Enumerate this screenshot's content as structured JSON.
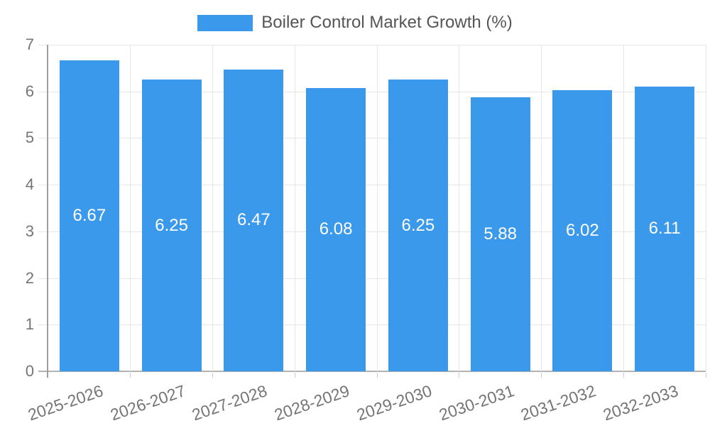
{
  "legend": {
    "label": "Boiler Control Market Growth (%)"
  },
  "chart_data": {
    "type": "bar",
    "title": "Boiler Control Market Growth (%)",
    "categories": [
      "2025-2026",
      "2026-2027",
      "2027-2028",
      "2028-2029",
      "2029-2030",
      "2030-2031",
      "2031-2032",
      "2032-2033"
    ],
    "values": [
      6.67,
      6.25,
      6.47,
      6.08,
      6.25,
      5.88,
      6.02,
      6.11
    ],
    "value_labels": [
      "6.67",
      "6.25",
      "6.47",
      "6.08",
      "6.25",
      "5.88",
      "6.02",
      "6.11"
    ],
    "xlabel": "",
    "ylabel": "",
    "ylim": [
      0,
      7
    ],
    "y_ticks": [
      0,
      1,
      2,
      3,
      4,
      5,
      6,
      7
    ],
    "grid": true,
    "legend_position": "top",
    "colors": {
      "bar": "#3b99ec",
      "value_label": "#ffffff",
      "axis_label": "#757575",
      "legend_text": "#555555",
      "gridline": "#e6e6e6",
      "axis_line": "#9e9e9e",
      "baseline": "#b3b3b3",
      "tick": "#cccccc",
      "background": "#ffffff"
    }
  }
}
